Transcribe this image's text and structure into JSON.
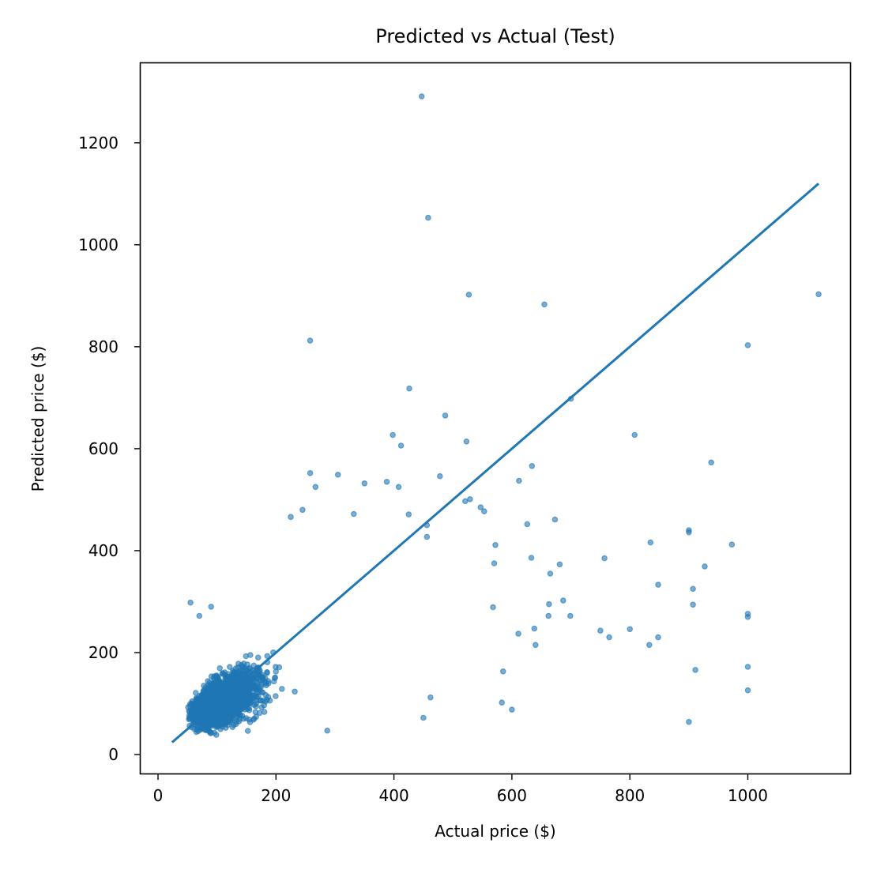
{
  "chart_data": {
    "type": "scatter",
    "title": "Predicted vs Actual (Test)",
    "xlabel": "Actual price ($)",
    "ylabel": "Predicted price ($)",
    "xlim": [
      -33,
      1174
    ],
    "ylim": [
      -40,
      1355
    ],
    "xticks": [
      0,
      200,
      400,
      600,
      800,
      1000
    ],
    "yticks": [
      0,
      200,
      400,
      600,
      800,
      1000,
      1200
    ],
    "grid": false,
    "legend": null,
    "marker_color": "#1f77b4",
    "marker_alpha": 0.6,
    "reference_line": {
      "label": "y = x",
      "x": [
        24,
        1120
      ],
      "y": [
        24,
        1120
      ],
      "color": "#1f77b4"
    },
    "dense_cluster": {
      "description": "Thousands of overlapping points concentrated around actual 30-300, predicted 30-300",
      "count_approx": 2500,
      "x_range": [
        25,
        300
      ],
      "y_range": [
        30,
        400
      ]
    },
    "outliers": [
      {
        "x": 447,
        "y": 1291
      },
      {
        "x": 458,
        "y": 1053
      },
      {
        "x": 527,
        "y": 902
      },
      {
        "x": 258,
        "y": 812
      },
      {
        "x": 655,
        "y": 883
      },
      {
        "x": 1120,
        "y": 903
      },
      {
        "x": 1000,
        "y": 803
      },
      {
        "x": 426,
        "y": 718
      },
      {
        "x": 700,
        "y": 698
      },
      {
        "x": 487,
        "y": 665
      },
      {
        "x": 398,
        "y": 627
      },
      {
        "x": 412,
        "y": 606
      },
      {
        "x": 523,
        "y": 614
      },
      {
        "x": 808,
        "y": 627
      },
      {
        "x": 938,
        "y": 573
      },
      {
        "x": 634,
        "y": 566
      },
      {
        "x": 258,
        "y": 552
      },
      {
        "x": 305,
        "y": 549
      },
      {
        "x": 478,
        "y": 546
      },
      {
        "x": 612,
        "y": 537
      },
      {
        "x": 350,
        "y": 532
      },
      {
        "x": 388,
        "y": 535
      },
      {
        "x": 408,
        "y": 525
      },
      {
        "x": 267,
        "y": 525
      },
      {
        "x": 521,
        "y": 497
      },
      {
        "x": 529,
        "y": 501
      },
      {
        "x": 547,
        "y": 485
      },
      {
        "x": 553,
        "y": 477
      },
      {
        "x": 332,
        "y": 472
      },
      {
        "x": 425,
        "y": 471
      },
      {
        "x": 245,
        "y": 480
      },
      {
        "x": 225,
        "y": 466
      },
      {
        "x": 456,
        "y": 450
      },
      {
        "x": 626,
        "y": 452
      },
      {
        "x": 673,
        "y": 461
      },
      {
        "x": 572,
        "y": 411
      },
      {
        "x": 456,
        "y": 427
      },
      {
        "x": 835,
        "y": 416
      },
      {
        "x": 900,
        "y": 440
      },
      {
        "x": 900,
        "y": 436
      },
      {
        "x": 973,
        "y": 412
      },
      {
        "x": 633,
        "y": 386
      },
      {
        "x": 757,
        "y": 385
      },
      {
        "x": 665,
        "y": 355
      },
      {
        "x": 681,
        "y": 373
      },
      {
        "x": 570,
        "y": 375
      },
      {
        "x": 927,
        "y": 369
      },
      {
        "x": 848,
        "y": 333
      },
      {
        "x": 907,
        "y": 325
      },
      {
        "x": 907,
        "y": 294
      },
      {
        "x": 687,
        "y": 302
      },
      {
        "x": 663,
        "y": 295
      },
      {
        "x": 568,
        "y": 289
      },
      {
        "x": 662,
        "y": 272
      },
      {
        "x": 699,
        "y": 272
      },
      {
        "x": 1000,
        "y": 276
      },
      {
        "x": 1000,
        "y": 270
      },
      {
        "x": 750,
        "y": 243
      },
      {
        "x": 765,
        "y": 230
      },
      {
        "x": 800,
        "y": 246
      },
      {
        "x": 638,
        "y": 247
      },
      {
        "x": 611,
        "y": 237
      },
      {
        "x": 848,
        "y": 230
      },
      {
        "x": 833,
        "y": 215
      },
      {
        "x": 640,
        "y": 215
      },
      {
        "x": 911,
        "y": 166
      },
      {
        "x": 1000,
        "y": 172
      },
      {
        "x": 1000,
        "y": 126
      },
      {
        "x": 585,
        "y": 163
      },
      {
        "x": 583,
        "y": 102
      },
      {
        "x": 600,
        "y": 88
      },
      {
        "x": 900,
        "y": 64
      },
      {
        "x": 450,
        "y": 72
      },
      {
        "x": 462,
        "y": 112
      },
      {
        "x": 287,
        "y": 47
      },
      {
        "x": 55,
        "y": 298
      },
      {
        "x": 90,
        "y": 290
      },
      {
        "x": 70,
        "y": 272
      }
    ]
  }
}
